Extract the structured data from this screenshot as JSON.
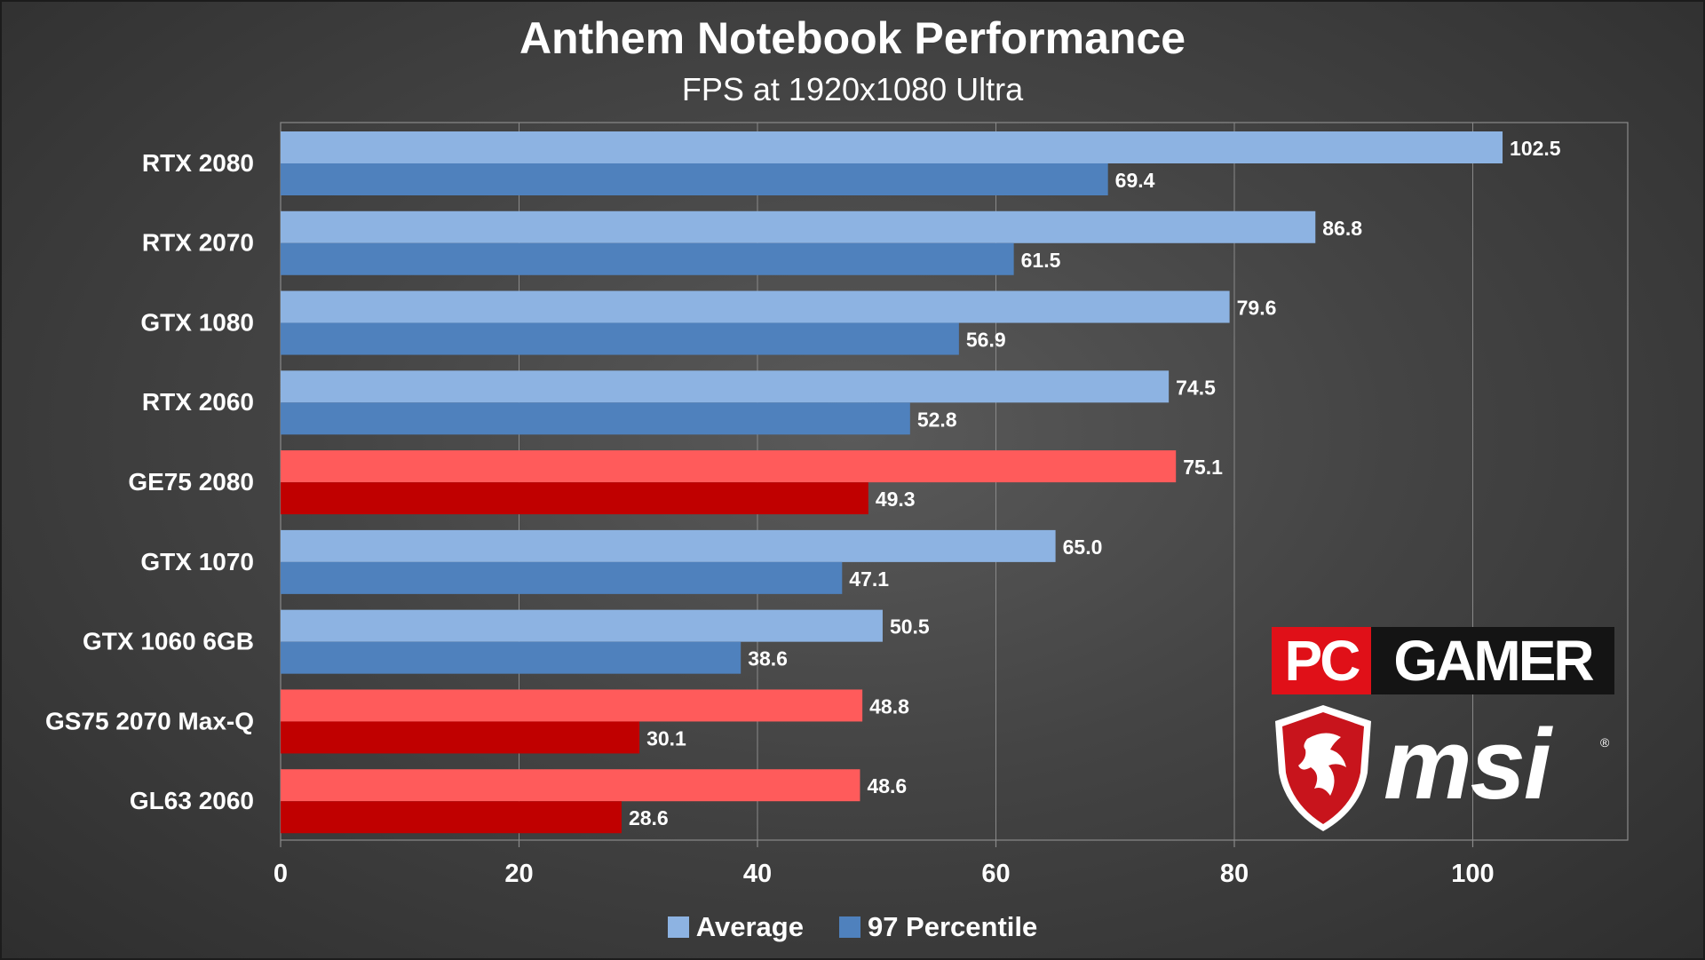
{
  "chart_data": {
    "type": "bar",
    "orientation": "horizontal",
    "title": "Anthem Notebook Performance",
    "subtitle": "FPS at 1920x1080 Ultra",
    "categories": [
      "RTX 2080",
      "RTX 2070",
      "GTX 1080",
      "RTX 2060",
      "GE75 2080",
      "GTX 1070",
      "GTX 1060 6GB",
      "GS75 2070 Max-Q",
      "GL63 2060"
    ],
    "highlighted": [
      false,
      false,
      false,
      false,
      true,
      false,
      false,
      true,
      true
    ],
    "series": [
      {
        "name": "Average",
        "values": [
          102.5,
          86.8,
          79.6,
          74.5,
          75.1,
          65.0,
          50.5,
          48.8,
          48.6
        ],
        "labels": [
          "102.5",
          "86.8",
          "79.6",
          "74.5",
          "75.1",
          "65.0",
          "50.5",
          "48.8",
          "48.6"
        ]
      },
      {
        "name": "97 Percentile",
        "values": [
          69.4,
          61.5,
          56.9,
          52.8,
          49.3,
          47.1,
          38.6,
          30.1,
          28.6
        ],
        "labels": [
          "69.4",
          "61.5",
          "56.9",
          "52.8",
          "49.3",
          "47.1",
          "38.6",
          "30.1",
          "28.6"
        ]
      }
    ],
    "xlim": [
      0,
      113
    ],
    "xticks": [
      "0",
      "20",
      "40",
      "60",
      "80",
      "100"
    ],
    "xtick_values": [
      0,
      20,
      40,
      60,
      80,
      100
    ],
    "grid": true,
    "legend": "bottom",
    "colors": {
      "average": "#8db3e2",
      "percentile": "#4f81bd",
      "highlight_average": "#ff5b5b",
      "highlight_percentile": "#c00000",
      "text": "#ffffff",
      "grid": "#8a8a8a"
    }
  },
  "logos": {
    "pcgamer_pc": "PC",
    "pcgamer_gamer": "GAMER",
    "msi": "msi",
    "msi_reg": "®"
  }
}
